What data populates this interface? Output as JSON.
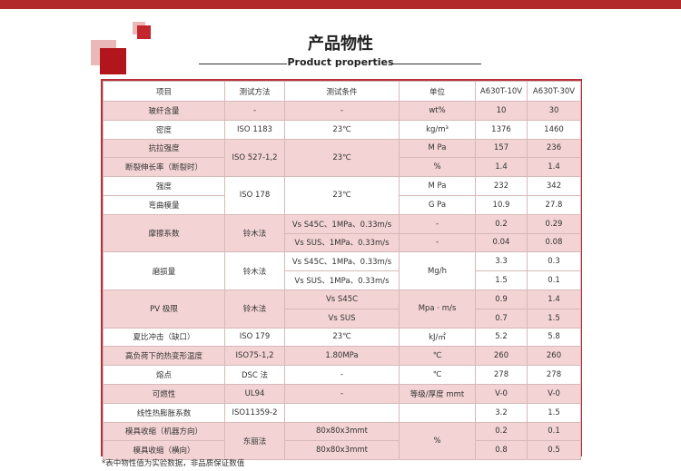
{
  "title": "产品物性",
  "subtitle": "Product properties",
  "note": "*表中物性值为实验数据，非品质保证数值",
  "headers": [
    "项目",
    "测试方法",
    "测试条件",
    "单位",
    "A630T-10V",
    "A630T-30V"
  ],
  "rows": [
    {
      "item": "玻纤含量",
      "method": "-",
      "condition": "-",
      "unit": "wt%",
      "v1": "10",
      "v2": "30"
    },
    {
      "item": "密度",
      "method": "ISO 1183",
      "condition": "23℃",
      "unit": "kg/m³",
      "v1": "1376",
      "v2": "1460"
    },
    {
      "item_a": "抗拉强度",
      "item_b": "断裂伸长率（断裂时）",
      "method": "ISO 527-1,2",
      "condition": "23℃",
      "unit_a": "M Pa",
      "unit_b": "%",
      "v1_a": "157",
      "v1_b": "1.4",
      "v2_a": "236",
      "v2_b": "1.4"
    },
    {
      "item_a": "强度",
      "item_b": "弯曲模量",
      "method": "ISO 178",
      "condition": "23℃",
      "unit_a": "M Pa",
      "unit_b": "G Pa",
      "v1_a": "232",
      "v1_b": "10.9",
      "v2_a": "342",
      "v2_b": "27.8"
    },
    {
      "item": "摩擦系数",
      "method": "铃木法",
      "cond_a": "Vs S45C、1MPa、0.33m/s",
      "cond_b": "Vs SUS、1MPa、0.33m/s",
      "unit_a": "-",
      "unit_b": "-",
      "v1_a": "0.2",
      "v1_b": "0.04",
      "v2_a": "0.29",
      "v2_b": "0.08"
    },
    {
      "item": "磨损量",
      "method": "铃木法",
      "cond_a": "Vs S45C、1MPa、0.33m/s",
      "cond_b": "Vs SUS、1MPa、0.33m/s",
      "unit": "Mg/h",
      "v1_a": "3.3",
      "v1_b": "1.5",
      "v2_a": "0.3",
      "v2_b": "0.1"
    },
    {
      "item": "PV 极限",
      "method": "铃木法",
      "cond_a": "Vs S45C",
      "cond_b": "Vs SUS",
      "unit": "Mpa · m/s",
      "v1_a": "0.9",
      "v1_b": "0.7",
      "v2_a": "1.4",
      "v2_b": "1.5"
    },
    {
      "item": "夏比冲击（缺口）",
      "method": "ISO 179",
      "condition": "23℃",
      "unit": "kJ/㎡",
      "v1": "5.2",
      "v2": "5.8"
    },
    {
      "item": "高负荷下的热变形温度",
      "method": "ISO75-1,2",
      "condition": "1.80MPa",
      "unit": "℃",
      "v1": "260",
      "v2": "260"
    },
    {
      "item": "熔点",
      "method": "DSC 法",
      "condition": "-",
      "unit": "℃",
      "v1": "278",
      "v2": "278"
    },
    {
      "item": "可燃性",
      "method": "UL94",
      "condition": "-",
      "unit": "等级/厚度  mmt",
      "v1": "V-0",
      "v2": "V-0"
    },
    {
      "item": "线性热膨胀系数",
      "method": "ISO11359-2",
      "condition": "",
      "unit": "",
      "v1": "3.2",
      "v2": "1.5"
    },
    {
      "item_a": "模具收缩（机器方向）",
      "item_b": "模具收缩（横向）",
      "method": "东丽法",
      "cond_a": "80x80x3mmt",
      "cond_b": "80x80x3mmt",
      "unit": "%",
      "v1_a": "0.2",
      "v1_b": "0.8",
      "v2_a": "0.1",
      "v2_b": "0.5"
    }
  ]
}
